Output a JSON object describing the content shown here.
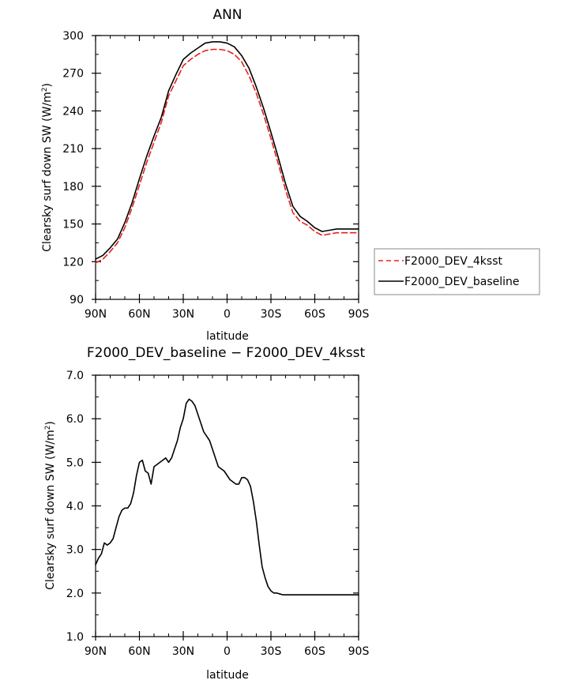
{
  "chart_data": [
    {
      "type": "line",
      "title": "ANN",
      "xlabel": "latitude",
      "ylabel_main": "Clearsky surf down SW (W/m",
      "ylabel_sup": "2",
      "ylabel_close": ")",
      "xlim": [
        90,
        -90
      ],
      "ylim": [
        90,
        300
      ],
      "xticks": [
        90,
        60,
        30,
        0,
        -30,
        -60,
        -90
      ],
      "xtick_labels": [
        "90N",
        "60N",
        "30N",
        "0",
        "30S",
        "60S",
        "90S"
      ],
      "yticks": [
        90,
        120,
        150,
        180,
        210,
        240,
        270,
        300
      ],
      "ytick_labels": [
        "90",
        "120",
        "150",
        "180",
        "210",
        "240",
        "270",
        "300"
      ],
      "legend_position": "right",
      "series": [
        {
          "name": "F2000_DEV_4ksst",
          "color": "#e8201a",
          "dash": "dashed",
          "x": [
            90,
            85,
            80,
            75,
            70,
            65,
            60,
            55,
            50,
            45,
            40,
            35,
            30,
            25,
            20,
            15,
            10,
            5,
            0,
            -5,
            -10,
            -15,
            -20,
            -25,
            -30,
            -35,
            -40,
            -45,
            -50,
            -55,
            -60,
            -65,
            -70,
            -75,
            -80,
            -85,
            -88,
            -90
          ],
          "y": [
            119,
            122,
            128,
            135,
            147,
            163,
            181,
            199,
            215,
            231,
            252,
            264,
            276,
            281,
            285,
            288,
            289,
            289,
            288,
            285,
            279,
            268,
            254,
            237,
            218,
            198,
            177,
            159,
            152,
            149,
            144,
            141,
            142,
            143,
            143,
            143,
            143,
            143
          ]
        },
        {
          "name": "F2000_DEV_baseline",
          "color": "#000000",
          "dash": "solid",
          "x": [
            90,
            85,
            80,
            75,
            70,
            65,
            60,
            55,
            50,
            45,
            40,
            35,
            30,
            25,
            20,
            15,
            10,
            5,
            0,
            -5,
            -10,
            -15,
            -20,
            -25,
            -30,
            -35,
            -40,
            -45,
            -50,
            -55,
            -60,
            -65,
            -70,
            -75,
            -80,
            -85,
            -88,
            -90
          ],
          "y": [
            122,
            125,
            131,
            138,
            151,
            167,
            186,
            204,
            220,
            235,
            256,
            269,
            281,
            286,
            290,
            294,
            295,
            295,
            294,
            291,
            284,
            274,
            259,
            242,
            223,
            203,
            182,
            164,
            156,
            152,
            147,
            144,
            145,
            146,
            146,
            146,
            146,
            146
          ]
        }
      ]
    },
    {
      "type": "line",
      "title": "F2000_DEV_baseline − F2000_DEV_4ksst",
      "xlabel": "latitude",
      "ylabel_main": "Clearsky surf down SW (W/m",
      "ylabel_sup": "2",
      "ylabel_close": ")",
      "xlim": [
        90,
        -90
      ],
      "ylim": [
        1.0,
        7.0
      ],
      "xticks": [
        90,
        60,
        30,
        0,
        -30,
        -60,
        -90
      ],
      "xtick_labels": [
        "90N",
        "60N",
        "30N",
        "0",
        "30S",
        "60S",
        "90S"
      ],
      "yticks": [
        1,
        2,
        3,
        4,
        5,
        6,
        7
      ],
      "ytick_labels": [
        "1.0",
        "2.0",
        "3.0",
        "4.0",
        "5.0",
        "6.0",
        "7.0"
      ],
      "series": [
        {
          "color": "#000000",
          "dash": "solid",
          "x": [
            90,
            88,
            86,
            84,
            82,
            80,
            78,
            76,
            74,
            72,
            70,
            68,
            66,
            64,
            62,
            60,
            58,
            56,
            54,
            52,
            50,
            48,
            46,
            44,
            42,
            40,
            38,
            36,
            34,
            32,
            30,
            28,
            26,
            24,
            22,
            20,
            18,
            16,
            14,
            12,
            10,
            8,
            6,
            4,
            2,
            0,
            -2,
            -4,
            -6,
            -8,
            -10,
            -12,
            -14,
            -16,
            -18,
            -20,
            -22,
            -24,
            -26,
            -28,
            -30,
            -32,
            -34,
            -36,
            -38,
            -40,
            -42,
            -44,
            -46,
            -48,
            -50,
            -52,
            -54,
            -56,
            -58,
            -60,
            -62,
            -64,
            -66,
            -68,
            -70,
            -72,
            -74,
            -76,
            -78,
            -80,
            -82,
            -84,
            -86,
            -88,
            -90
          ],
          "y": [
            2.65,
            2.8,
            2.9,
            3.15,
            3.1,
            3.15,
            3.25,
            3.5,
            3.75,
            3.9,
            3.95,
            3.95,
            4.05,
            4.3,
            4.7,
            5.0,
            5.05,
            4.8,
            4.75,
            4.5,
            4.9,
            4.95,
            5.0,
            5.05,
            5.1,
            5.0,
            5.1,
            5.3,
            5.5,
            5.8,
            6.0,
            6.35,
            6.45,
            6.4,
            6.3,
            6.1,
            5.9,
            5.7,
            5.6,
            5.5,
            5.3,
            5.1,
            4.9,
            4.85,
            4.8,
            4.7,
            4.6,
            4.55,
            4.5,
            4.5,
            4.65,
            4.65,
            4.6,
            4.45,
            4.1,
            3.65,
            3.1,
            2.6,
            2.35,
            2.15,
            2.05,
            2.0,
            2.0,
            1.98,
            1.96,
            1.96,
            1.96,
            1.96,
            1.96,
            1.96,
            1.96,
            1.96,
            1.96,
            1.96,
            1.96,
            1.96,
            1.96,
            1.96,
            1.96,
            1.96,
            1.96,
            1.96,
            1.96,
            1.96,
            1.96,
            1.96,
            1.96,
            1.96,
            1.96,
            1.96,
            1.96
          ]
        }
      ]
    }
  ]
}
